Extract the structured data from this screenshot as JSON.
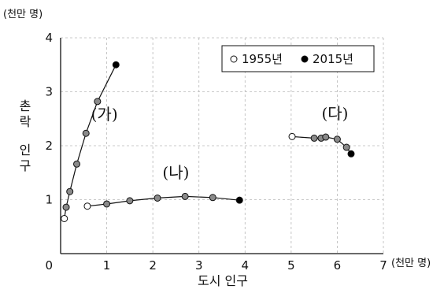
{
  "chart_data": {
    "type": "scatter",
    "x_unit": "(천만 명)",
    "y_unit": "(천만 명)",
    "xlabel": "도시 인구",
    "ylabel": "촌락 인구",
    "xlim": [
      0,
      7
    ],
    "ylim": [
      0,
      4
    ],
    "x_ticks": [
      "0",
      "1",
      "2",
      "3",
      "4",
      "5",
      "6",
      "7"
    ],
    "y_ticks": [
      "1",
      "2",
      "3",
      "4"
    ],
    "grid": true,
    "legend_position": "top-right",
    "legend": [
      {
        "label": "1955년",
        "marker": "open-circle"
      },
      {
        "label": "2015년",
        "marker": "black-circle"
      }
    ],
    "series": [
      {
        "name": "(가)",
        "points": [
          [
            0.08,
            0.65
          ],
          [
            0.12,
            0.86
          ],
          [
            0.2,
            1.15
          ],
          [
            0.35,
            1.66
          ],
          [
            0.55,
            2.23
          ],
          [
            0.8,
            2.82
          ],
          [
            1.2,
            3.5
          ]
        ]
      },
      {
        "name": "(나)",
        "points": [
          [
            0.58,
            0.88
          ],
          [
            1.0,
            0.92
          ],
          [
            1.5,
            0.98
          ],
          [
            2.1,
            1.03
          ],
          [
            2.7,
            1.06
          ],
          [
            3.3,
            1.04
          ],
          [
            3.88,
            0.99
          ]
        ]
      },
      {
        "name": "(다)",
        "points": [
          [
            5.02,
            2.17
          ],
          [
            5.5,
            2.14
          ],
          [
            5.65,
            2.14
          ],
          [
            5.75,
            2.16
          ],
          [
            6.0,
            2.12
          ],
          [
            6.2,
            1.97
          ],
          [
            6.3,
            1.85
          ]
        ]
      }
    ],
    "colors": {
      "start": "#ffffff",
      "middle": "#8a8a8a",
      "end": "#000000",
      "grid": "#b8b8b8"
    }
  }
}
